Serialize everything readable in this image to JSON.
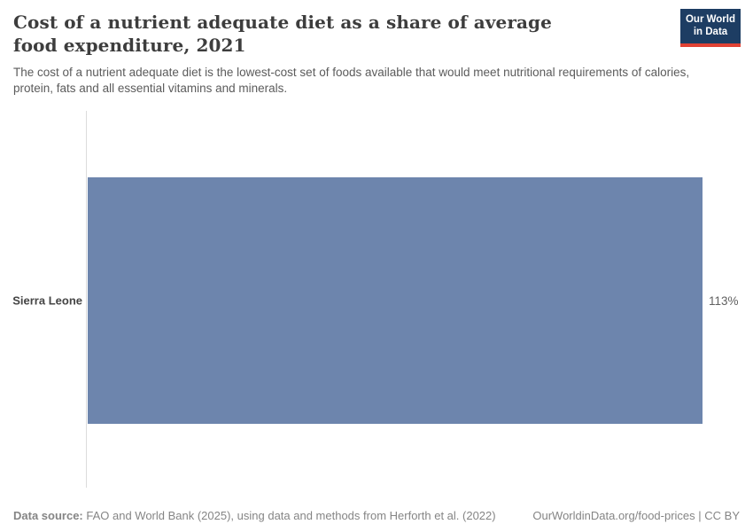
{
  "header": {
    "title": "Cost of a nutrient adequate diet as a share of average food expenditure, 2021",
    "subtitle": "The cost of a nutrient adequate diet is the lowest-cost set of foods available that would meet nutritional requirements of calories, protein, fats and all essential vitamins and minerals.",
    "logo": {
      "line1": "Our World",
      "line2": "in Data"
    }
  },
  "chart_data": {
    "type": "bar",
    "orientation": "horizontal",
    "title": "Cost of a nutrient adequate diet as a share of average food expenditure, 2021",
    "categories": [
      "Sierra Leone"
    ],
    "values": [
      113
    ],
    "value_labels": [
      "113%"
    ],
    "xlabel": "",
    "ylabel": "",
    "xlim": [
      0,
      120
    ],
    "grid": false,
    "legend": false
  },
  "footer": {
    "source_label": "Data source:",
    "source_text": " FAO and World Bank (2025), using data and methods from Herforth et al. (2022)",
    "right_text": "OurWorldinData.org/food-prices | CC BY"
  },
  "colors": {
    "bar": "#6d85ad",
    "axis_line": "#dcdcdc",
    "logo_background": "#1d3d63",
    "logo_underline": "#e04234",
    "title_text": "#3d3d3d",
    "subtitle_text": "#5b5b5b",
    "footer_text": "#858585"
  }
}
